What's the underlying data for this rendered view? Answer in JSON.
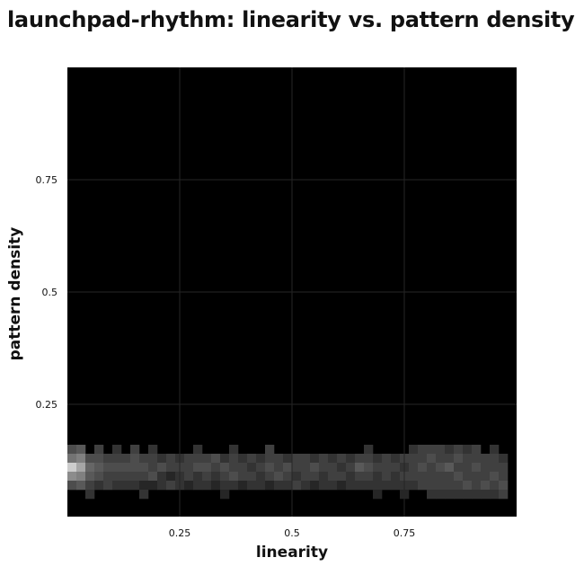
{
  "chart_data": {
    "type": "heatmap",
    "title": "launchpad-rhythm: linearity vs. pattern density",
    "xlabel": "linearity",
    "ylabel": "pattern density",
    "xlim": [
      0,
      1
    ],
    "ylim": [
      0,
      1
    ],
    "xticks": [
      {
        "value": 0.25,
        "label": "0.25"
      },
      {
        "value": 0.5,
        "label": "0.5"
      },
      {
        "value": 0.75,
        "label": "0.75"
      }
    ],
    "yticks": [
      {
        "value": 0.25,
        "label": "0.25"
      },
      {
        "value": 0.5,
        "label": "0.5"
      },
      {
        "value": 0.75,
        "label": "0.75"
      }
    ],
    "grid": true,
    "colormap": "grayscale (black = 0, white = max)",
    "background_color": "#000000",
    "grid_color": "#262626",
    "bins": {
      "x_count": 50,
      "y_count": 50,
      "width": 0.02,
      "height": 0.02
    },
    "cells_columns": [
      "x_bin_start",
      "y_bin_start",
      "intensity"
    ],
    "cells": [
      [
        0.0,
        0.14,
        0.3
      ],
      [
        0.0,
        0.12,
        0.45
      ],
      [
        0.0,
        0.1,
        0.8
      ],
      [
        0.0,
        0.08,
        0.55
      ],
      [
        0.0,
        0.06,
        0.3
      ],
      [
        0.02,
        0.14,
        0.35
      ],
      [
        0.02,
        0.12,
        0.5
      ],
      [
        0.02,
        0.1,
        0.65
      ],
      [
        0.02,
        0.08,
        0.5
      ],
      [
        0.02,
        0.06,
        0.35
      ],
      [
        0.04,
        0.12,
        0.3
      ],
      [
        0.04,
        0.1,
        0.4
      ],
      [
        0.04,
        0.08,
        0.35
      ],
      [
        0.04,
        0.06,
        0.25
      ],
      [
        0.04,
        0.04,
        0.2
      ],
      [
        0.06,
        0.14,
        0.25
      ],
      [
        0.06,
        0.12,
        0.3
      ],
      [
        0.06,
        0.1,
        0.35
      ],
      [
        0.06,
        0.08,
        0.3
      ],
      [
        0.06,
        0.06,
        0.2
      ],
      [
        0.08,
        0.12,
        0.25
      ],
      [
        0.08,
        0.1,
        0.3
      ],
      [
        0.08,
        0.08,
        0.25
      ],
      [
        0.08,
        0.06,
        0.25
      ],
      [
        0.1,
        0.14,
        0.2
      ],
      [
        0.1,
        0.12,
        0.25
      ],
      [
        0.1,
        0.1,
        0.3
      ],
      [
        0.1,
        0.08,
        0.25
      ],
      [
        0.1,
        0.06,
        0.2
      ],
      [
        0.12,
        0.12,
        0.25
      ],
      [
        0.12,
        0.1,
        0.3
      ],
      [
        0.12,
        0.08,
        0.25
      ],
      [
        0.12,
        0.06,
        0.2
      ],
      [
        0.14,
        0.14,
        0.25
      ],
      [
        0.14,
        0.12,
        0.3
      ],
      [
        0.14,
        0.1,
        0.3
      ],
      [
        0.14,
        0.08,
        0.25
      ],
      [
        0.14,
        0.06,
        0.2
      ],
      [
        0.16,
        0.12,
        0.25
      ],
      [
        0.16,
        0.1,
        0.3
      ],
      [
        0.16,
        0.08,
        0.25
      ],
      [
        0.16,
        0.06,
        0.15
      ],
      [
        0.16,
        0.04,
        0.2
      ],
      [
        0.18,
        0.14,
        0.2
      ],
      [
        0.18,
        0.12,
        0.25
      ],
      [
        0.18,
        0.1,
        0.25
      ],
      [
        0.18,
        0.08,
        0.3
      ],
      [
        0.18,
        0.06,
        0.15
      ],
      [
        0.2,
        0.12,
        0.2
      ],
      [
        0.2,
        0.1,
        0.3
      ],
      [
        0.2,
        0.08,
        0.2
      ],
      [
        0.2,
        0.06,
        0.2
      ],
      [
        0.22,
        0.12,
        0.25
      ],
      [
        0.22,
        0.1,
        0.25
      ],
      [
        0.22,
        0.08,
        0.15
      ],
      [
        0.22,
        0.06,
        0.25
      ],
      [
        0.24,
        0.12,
        0.2
      ],
      [
        0.24,
        0.1,
        0.25
      ],
      [
        0.24,
        0.08,
        0.2
      ],
      [
        0.24,
        0.06,
        0.2
      ],
      [
        0.26,
        0.12,
        0.25
      ],
      [
        0.26,
        0.1,
        0.25
      ],
      [
        0.26,
        0.08,
        0.25
      ],
      [
        0.26,
        0.06,
        0.15
      ],
      [
        0.28,
        0.14,
        0.2
      ],
      [
        0.28,
        0.12,
        0.25
      ],
      [
        0.28,
        0.1,
        0.3
      ],
      [
        0.28,
        0.08,
        0.2
      ],
      [
        0.28,
        0.06,
        0.2
      ],
      [
        0.3,
        0.12,
        0.25
      ],
      [
        0.3,
        0.1,
        0.3
      ],
      [
        0.3,
        0.08,
        0.25
      ],
      [
        0.3,
        0.06,
        0.2
      ],
      [
        0.32,
        0.12,
        0.3
      ],
      [
        0.32,
        0.1,
        0.25
      ],
      [
        0.32,
        0.08,
        0.2
      ],
      [
        0.32,
        0.06,
        0.15
      ],
      [
        0.34,
        0.12,
        0.2
      ],
      [
        0.34,
        0.1,
        0.3
      ],
      [
        0.34,
        0.08,
        0.25
      ],
      [
        0.34,
        0.06,
        0.2
      ],
      [
        0.34,
        0.04,
        0.15
      ],
      [
        0.36,
        0.14,
        0.2
      ],
      [
        0.36,
        0.12,
        0.25
      ],
      [
        0.36,
        0.1,
        0.25
      ],
      [
        0.36,
        0.08,
        0.3
      ],
      [
        0.36,
        0.06,
        0.2
      ],
      [
        0.38,
        0.12,
        0.2
      ],
      [
        0.38,
        0.1,
        0.25
      ],
      [
        0.38,
        0.08,
        0.25
      ],
      [
        0.38,
        0.06,
        0.15
      ],
      [
        0.4,
        0.12,
        0.25
      ],
      [
        0.4,
        0.1,
        0.2
      ],
      [
        0.4,
        0.08,
        0.25
      ],
      [
        0.4,
        0.06,
        0.2
      ],
      [
        0.42,
        0.12,
        0.2
      ],
      [
        0.42,
        0.1,
        0.25
      ],
      [
        0.42,
        0.08,
        0.2
      ],
      [
        0.42,
        0.06,
        0.2
      ],
      [
        0.44,
        0.14,
        0.25
      ],
      [
        0.44,
        0.12,
        0.25
      ],
      [
        0.44,
        0.1,
        0.3
      ],
      [
        0.44,
        0.08,
        0.25
      ],
      [
        0.44,
        0.06,
        0.15
      ],
      [
        0.46,
        0.12,
        0.25
      ],
      [
        0.46,
        0.1,
        0.25
      ],
      [
        0.46,
        0.08,
        0.3
      ],
      [
        0.46,
        0.06,
        0.2
      ],
      [
        0.48,
        0.12,
        0.2
      ],
      [
        0.48,
        0.1,
        0.3
      ],
      [
        0.48,
        0.08,
        0.25
      ],
      [
        0.48,
        0.06,
        0.2
      ],
      [
        0.5,
        0.12,
        0.25
      ],
      [
        0.5,
        0.1,
        0.25
      ],
      [
        0.5,
        0.08,
        0.2
      ],
      [
        0.5,
        0.06,
        0.25
      ],
      [
        0.52,
        0.12,
        0.25
      ],
      [
        0.52,
        0.1,
        0.25
      ],
      [
        0.52,
        0.08,
        0.25
      ],
      [
        0.52,
        0.06,
        0.2
      ],
      [
        0.54,
        0.12,
        0.2
      ],
      [
        0.54,
        0.1,
        0.3
      ],
      [
        0.54,
        0.08,
        0.25
      ],
      [
        0.54,
        0.06,
        0.15
      ],
      [
        0.56,
        0.12,
        0.25
      ],
      [
        0.56,
        0.1,
        0.25
      ],
      [
        0.56,
        0.08,
        0.2
      ],
      [
        0.56,
        0.06,
        0.2
      ],
      [
        0.58,
        0.12,
        0.2
      ],
      [
        0.58,
        0.1,
        0.25
      ],
      [
        0.58,
        0.08,
        0.25
      ],
      [
        0.58,
        0.06,
        0.2
      ],
      [
        0.6,
        0.12,
        0.25
      ],
      [
        0.6,
        0.1,
        0.2
      ],
      [
        0.6,
        0.08,
        0.25
      ],
      [
        0.6,
        0.06,
        0.15
      ],
      [
        0.62,
        0.12,
        0.2
      ],
      [
        0.62,
        0.1,
        0.25
      ],
      [
        0.62,
        0.08,
        0.2
      ],
      [
        0.62,
        0.06,
        0.2
      ],
      [
        0.64,
        0.12,
        0.25
      ],
      [
        0.64,
        0.1,
        0.35
      ],
      [
        0.64,
        0.08,
        0.25
      ],
      [
        0.64,
        0.06,
        0.2
      ],
      [
        0.66,
        0.14,
        0.2
      ],
      [
        0.66,
        0.12,
        0.25
      ],
      [
        0.66,
        0.1,
        0.3
      ],
      [
        0.66,
        0.08,
        0.25
      ],
      [
        0.66,
        0.06,
        0.2
      ],
      [
        0.68,
        0.12,
        0.2
      ],
      [
        0.68,
        0.1,
        0.25
      ],
      [
        0.68,
        0.08,
        0.2
      ],
      [
        0.68,
        0.06,
        0.2
      ],
      [
        0.68,
        0.04,
        0.15
      ],
      [
        0.7,
        0.12,
        0.25
      ],
      [
        0.7,
        0.1,
        0.25
      ],
      [
        0.7,
        0.08,
        0.25
      ],
      [
        0.7,
        0.06,
        0.2
      ],
      [
        0.72,
        0.12,
        0.2
      ],
      [
        0.72,
        0.1,
        0.25
      ],
      [
        0.72,
        0.08,
        0.2
      ],
      [
        0.72,
        0.06,
        0.2
      ],
      [
        0.74,
        0.12,
        0.25
      ],
      [
        0.74,
        0.1,
        0.2
      ],
      [
        0.74,
        0.08,
        0.25
      ],
      [
        0.74,
        0.06,
        0.2
      ],
      [
        0.74,
        0.04,
        0.15
      ],
      [
        0.76,
        0.14,
        0.2
      ],
      [
        0.76,
        0.12,
        0.25
      ],
      [
        0.76,
        0.1,
        0.25
      ],
      [
        0.76,
        0.08,
        0.25
      ],
      [
        0.76,
        0.06,
        0.2
      ],
      [
        0.78,
        0.14,
        0.25
      ],
      [
        0.78,
        0.12,
        0.25
      ],
      [
        0.78,
        0.1,
        0.3
      ],
      [
        0.78,
        0.08,
        0.25
      ],
      [
        0.78,
        0.06,
        0.25
      ],
      [
        0.8,
        0.14,
        0.25
      ],
      [
        0.8,
        0.12,
        0.3
      ],
      [
        0.8,
        0.1,
        0.25
      ],
      [
        0.8,
        0.08,
        0.25
      ],
      [
        0.8,
        0.06,
        0.25
      ],
      [
        0.8,
        0.04,
        0.2
      ],
      [
        0.82,
        0.14,
        0.25
      ],
      [
        0.82,
        0.12,
        0.25
      ],
      [
        0.82,
        0.1,
        0.3
      ],
      [
        0.82,
        0.08,
        0.25
      ],
      [
        0.82,
        0.06,
        0.25
      ],
      [
        0.82,
        0.04,
        0.2
      ],
      [
        0.84,
        0.14,
        0.2
      ],
      [
        0.84,
        0.12,
        0.25
      ],
      [
        0.84,
        0.1,
        0.35
      ],
      [
        0.84,
        0.08,
        0.25
      ],
      [
        0.84,
        0.06,
        0.25
      ],
      [
        0.84,
        0.04,
        0.2
      ],
      [
        0.86,
        0.14,
        0.25
      ],
      [
        0.86,
        0.12,
        0.3
      ],
      [
        0.86,
        0.1,
        0.25
      ],
      [
        0.86,
        0.08,
        0.3
      ],
      [
        0.86,
        0.06,
        0.25
      ],
      [
        0.86,
        0.04,
        0.2
      ],
      [
        0.88,
        0.14,
        0.2
      ],
      [
        0.88,
        0.12,
        0.25
      ],
      [
        0.88,
        0.1,
        0.25
      ],
      [
        0.88,
        0.08,
        0.25
      ],
      [
        0.88,
        0.06,
        0.3
      ],
      [
        0.88,
        0.04,
        0.2
      ],
      [
        0.9,
        0.14,
        0.25
      ],
      [
        0.9,
        0.12,
        0.25
      ],
      [
        0.9,
        0.1,
        0.3
      ],
      [
        0.9,
        0.08,
        0.25
      ],
      [
        0.9,
        0.06,
        0.25
      ],
      [
        0.9,
        0.04,
        0.2
      ],
      [
        0.92,
        0.12,
        0.25
      ],
      [
        0.92,
        0.1,
        0.25
      ],
      [
        0.92,
        0.08,
        0.25
      ],
      [
        0.92,
        0.06,
        0.3
      ],
      [
        0.92,
        0.04,
        0.2
      ],
      [
        0.94,
        0.14,
        0.2
      ],
      [
        0.94,
        0.12,
        0.25
      ],
      [
        0.94,
        0.1,
        0.25
      ],
      [
        0.94,
        0.08,
        0.3
      ],
      [
        0.94,
        0.06,
        0.25
      ],
      [
        0.94,
        0.04,
        0.2
      ],
      [
        0.96,
        0.12,
        0.2
      ],
      [
        0.96,
        0.1,
        0.25
      ],
      [
        0.96,
        0.08,
        0.25
      ],
      [
        0.96,
        0.06,
        0.3
      ],
      [
        0.96,
        0.04,
        0.25
      ]
    ]
  }
}
